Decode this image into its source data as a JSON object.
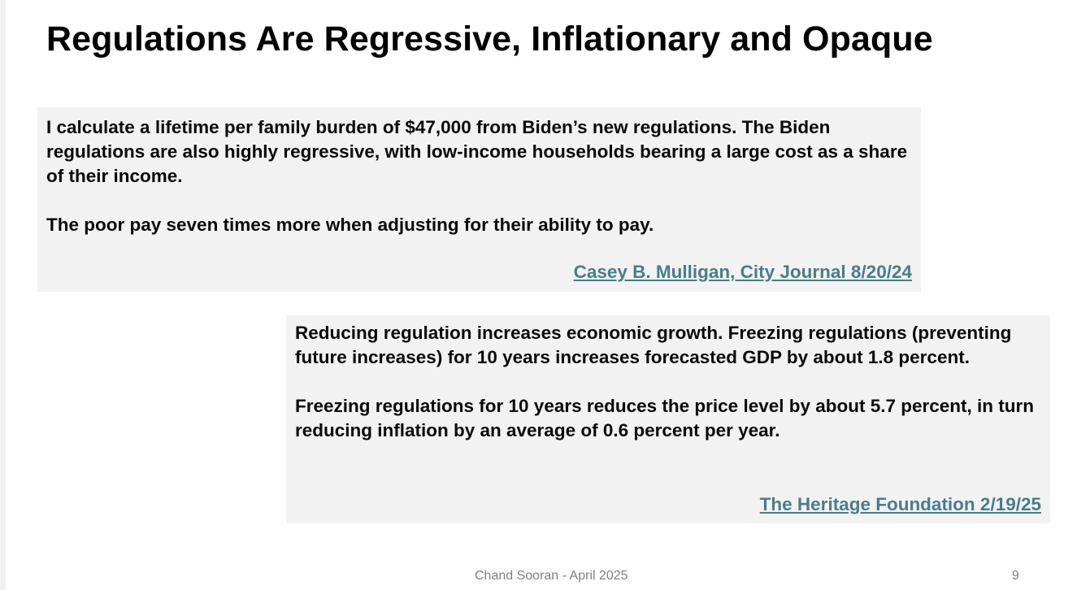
{
  "slide": {
    "title": "Regulations Are Regressive, Inflationary and Opaque",
    "quotes": [
      {
        "paragraphs": [
          "I calculate a lifetime per family burden of $47,000 from Biden’s new regulations. The Biden regulations are also highly regressive, with low-income households bearing a large cost as a share of their income.",
          "The poor pay seven times more when adjusting for their ability to pay."
        ],
        "source": "Casey B. Mulligan, City Journal 8/20/24"
      },
      {
        "paragraphs": [
          "Reducing regulation increases economic growth. Freezing regulations (preventing future increases) for 10 years increases forecasted GDP by about 1.8 percent.",
          "Freezing regulations for 10 years reduces the price level by about 5.7 percent, in turn reducing inflation by an average of 0.6 percent per year."
        ],
        "source": "The Heritage Foundation 2/19/25"
      }
    ],
    "footer": "Chand Sooran - April 2025",
    "page_number": "9"
  },
  "colors": {
    "box_background": "#f2f2f2",
    "link": "#4a7c8c",
    "footer_text": "#7f7f7f"
  }
}
